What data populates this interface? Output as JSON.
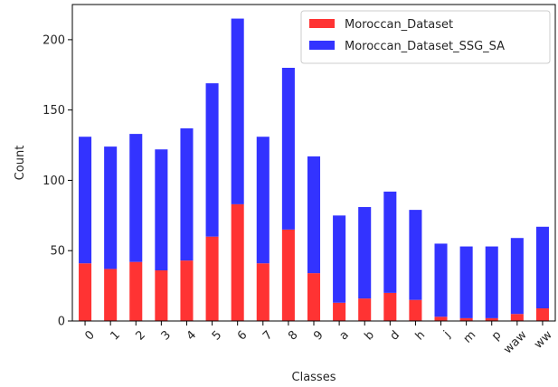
{
  "chart_data": {
    "type": "bar",
    "stacked": true,
    "categories": [
      "0",
      "1",
      "2",
      "3",
      "4",
      "5",
      "6",
      "7",
      "8",
      "9",
      "a",
      "b",
      "d",
      "h",
      "j",
      "m",
      "p",
      "waw",
      "ww"
    ],
    "series": [
      {
        "name": "Moroccan_Dataset",
        "color": "#ff3333",
        "values": [
          41,
          37,
          42,
          36,
          43,
          60,
          83,
          41,
          65,
          34,
          13,
          16,
          20,
          15,
          3,
          2,
          2,
          5,
          9
        ]
      },
      {
        "name": "Moroccan_Dataset_SSG_SA",
        "color": "#3333ff",
        "values": [
          90,
          87,
          91,
          86,
          94,
          109,
          132,
          90,
          115,
          83,
          62,
          65,
          72,
          64,
          52,
          51,
          51,
          54,
          58
        ]
      }
    ],
    "xlabel": "Classes",
    "ylabel": "Count",
    "ylim": [
      0,
      225
    ],
    "yticks": [
      0,
      50,
      100,
      150,
      200
    ],
    "legend_position": "top-right",
    "grid": false
  }
}
